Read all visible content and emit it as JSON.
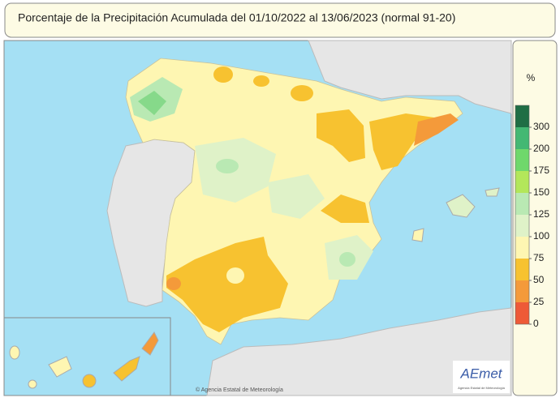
{
  "title": "Porcentaje de la Precipitación Acumulada del 01/10/2022 al 13/06/2023 (normal 91-20)",
  "legend": {
    "unit": "%",
    "ticks": [
      0,
      25,
      50,
      75,
      100,
      125,
      150,
      175,
      200,
      300
    ],
    "colors": [
      "#ee5a37",
      "#f49a3a",
      "#f7c230",
      "#fef6b2",
      "#dff2c8",
      "#b9e9b3",
      "#b3e75a",
      "#6fd86b",
      "#43b873",
      "#1f6e45"
    ]
  },
  "logo": {
    "name": "AEmet",
    "subtitle": "Agencia Estatal de Meteorología"
  },
  "credit": "© Agencia Estatal de Meteorología"
}
